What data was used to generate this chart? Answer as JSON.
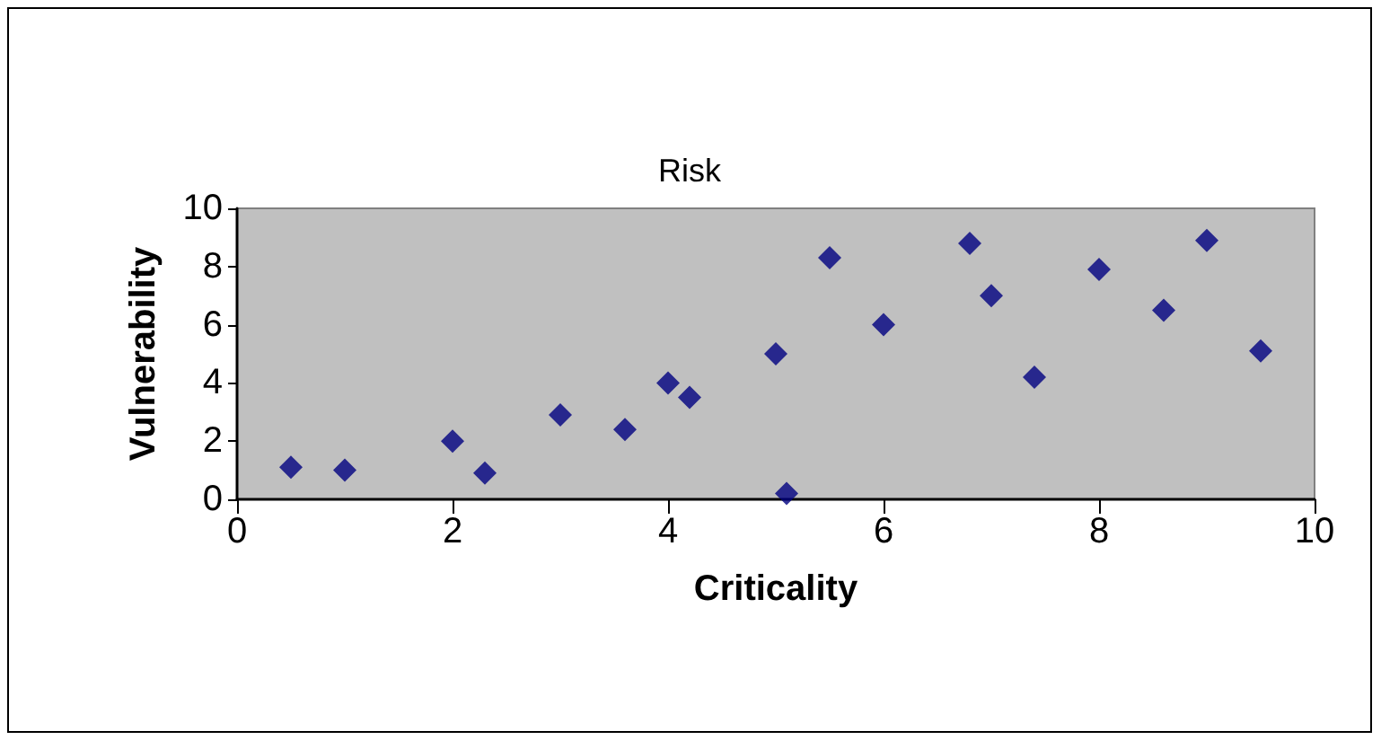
{
  "chart_data": {
    "type": "scatter",
    "title": "Risk",
    "xlabel": "Criticality",
    "ylabel": "Vulnerability",
    "x": [
      0.5,
      1,
      2,
      2.3,
      3,
      3.6,
      4,
      4.2,
      5,
      5.1,
      5.5,
      6,
      6.8,
      7,
      7.4,
      8,
      8.6,
      9,
      9.5
    ],
    "series": [
      {
        "color": "#000080",
        "values": [
          1.1,
          1,
          2,
          0.9,
          2.9,
          2.4,
          4,
          3.5,
          5,
          0.2,
          8.3,
          6,
          8.8,
          7,
          4.2,
          7.9,
          6.5,
          8.9,
          5.1
        ]
      }
    ],
    "xlim": [
      0,
      10
    ],
    "xticks": [
      0,
      2,
      4,
      6,
      8,
      10
    ],
    "ylim": [
      0,
      10
    ],
    "yticks": [
      0,
      2,
      4,
      6,
      8,
      10
    ],
    "grid": false,
    "marker": "diamond"
  }
}
